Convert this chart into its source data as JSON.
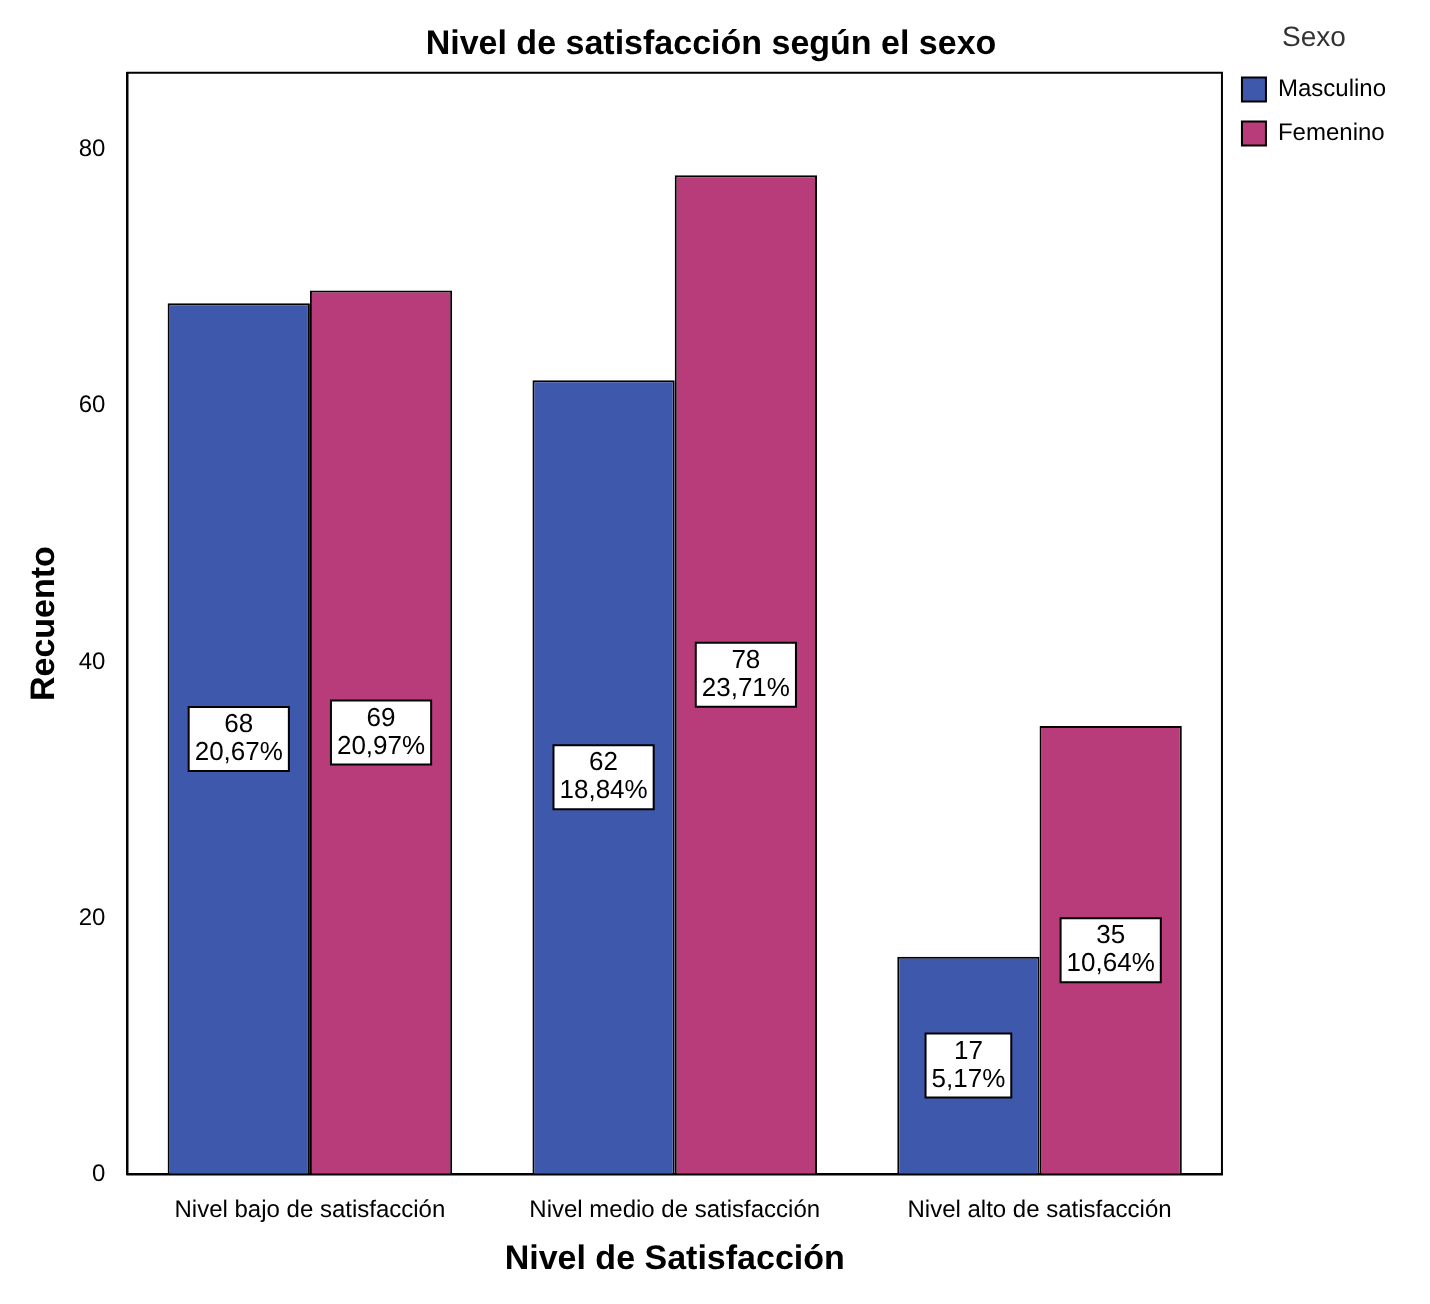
{
  "chart_data": {
    "type": "bar",
    "title": "Nivel de satisfacción según el sexo",
    "xlabel": "Nivel de Satisfacción",
    "ylabel": "Recuento",
    "legend_title": "Sexo",
    "legend": "top right",
    "grid": false,
    "categories": [
      "Nivel bajo de satisfacción",
      "Nivel medio de satisfacción",
      "Nivel alto de satisfacción"
    ],
    "ylim": [
      0,
      86
    ],
    "yticks": [
      0,
      20,
      40,
      60,
      80
    ],
    "series": [
      {
        "name": "Masculino",
        "color": "#3e58ac",
        "values": [
          68,
          62,
          17
        ],
        "value_labels": [
          "68\n20,67%",
          "62\n18,84%",
          "17\n5,17%"
        ]
      },
      {
        "name": "Femenino",
        "color": "#b83c7a",
        "values": [
          69,
          78,
          35
        ],
        "value_labels": [
          "69\n20,97%",
          "78\n23,71%",
          "35\n10,64%"
        ]
      }
    ]
  }
}
